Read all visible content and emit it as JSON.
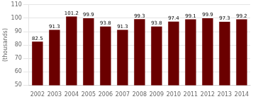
{
  "chart_data": {
    "type": "bar",
    "categories": [
      "2002",
      "2003",
      "2004",
      "2005",
      "2006",
      "2007",
      "2008",
      "2009",
      "2010",
      "2011",
      "2012",
      "2013",
      "2014"
    ],
    "values": [
      82.5,
      91.3,
      101.2,
      99.9,
      93.8,
      91.3,
      99.3,
      93.8,
      97.4,
      99.1,
      99.9,
      97.3,
      99.2
    ],
    "color": "#6B0000",
    "ylabel": "(thousands)",
    "ylim": [
      50,
      110
    ],
    "yticks": [
      50,
      60,
      70,
      80,
      90,
      100,
      110
    ],
    "grid": true,
    "data_labels": true
  }
}
